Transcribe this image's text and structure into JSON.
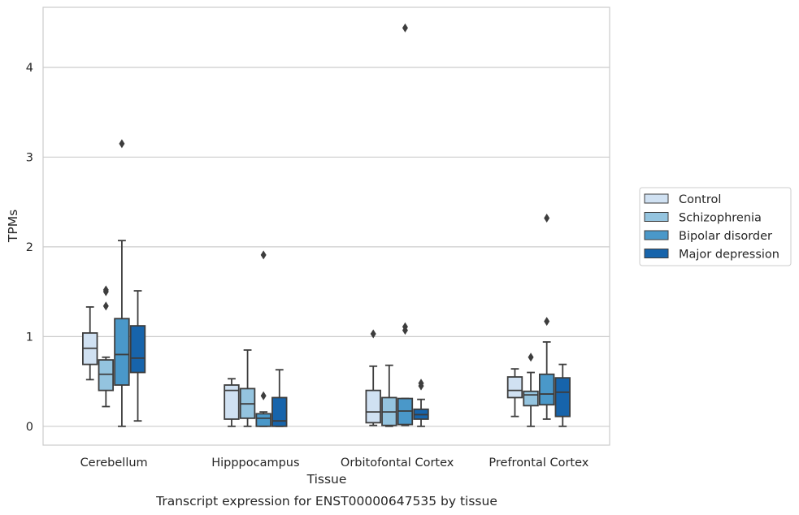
{
  "chart_data": {
    "type": "box",
    "title": "",
    "xlabel": "Tissue",
    "ylabel": "TPMs",
    "caption": "Transcript expression for ENST00000647535 by tissue",
    "ylim": [
      -0.21,
      4.67
    ],
    "yticks": [
      0,
      1,
      2,
      3,
      4
    ],
    "grid": true,
    "legend_position": "right",
    "categories": [
      "Cerebellum",
      "Hipppocampus",
      "Orbitofontal Cortex",
      "Prefrontal Cortex"
    ],
    "series": [
      {
        "name": "Control",
        "color": "#d0e1f2",
        "boxes": [
          {
            "whislo": 0.52,
            "q1": 0.69,
            "med": 0.87,
            "q3": 1.04,
            "whishi": 1.33,
            "fliers": []
          },
          {
            "whislo": 0.0,
            "q1": 0.08,
            "med": 0.4,
            "q3": 0.46,
            "whishi": 0.53,
            "fliers": []
          },
          {
            "whislo": 0.01,
            "q1": 0.04,
            "med": 0.16,
            "q3": 0.4,
            "whishi": 0.67,
            "fliers": [
              1.03
            ]
          },
          {
            "whislo": 0.11,
            "q1": 0.32,
            "med": 0.4,
            "q3": 0.55,
            "whishi": 0.64,
            "fliers": []
          }
        ]
      },
      {
        "name": "Schizophrenia",
        "color": "#94c4df",
        "boxes": [
          {
            "whislo": 0.22,
            "q1": 0.4,
            "med": 0.58,
            "q3": 0.74,
            "whishi": 0.77,
            "fliers": [
              1.34,
              1.5,
              1.52
            ]
          },
          {
            "whislo": 0.0,
            "q1": 0.09,
            "med": 0.25,
            "q3": 0.42,
            "whishi": 0.85,
            "fliers": []
          },
          {
            "whislo": 0.0,
            "q1": 0.01,
            "med": 0.16,
            "q3": 0.32,
            "whishi": 0.68,
            "fliers": []
          },
          {
            "whislo": 0.0,
            "q1": 0.23,
            "med": 0.35,
            "q3": 0.39,
            "whishi": 0.6,
            "fliers": [
              0.77
            ]
          }
        ]
      },
      {
        "name": "Bipolar disorder",
        "color": "#4a98c9",
        "boxes": [
          {
            "whislo": 0.0,
            "q1": 0.46,
            "med": 0.8,
            "q3": 1.2,
            "whishi": 2.07,
            "fliers": [
              3.15
            ]
          },
          {
            "whislo": 0.0,
            "q1": 0.0,
            "med": 0.09,
            "q3": 0.14,
            "whishi": 0.16,
            "fliers": [
              0.34,
              1.91
            ]
          },
          {
            "whislo": 0.01,
            "q1": 0.02,
            "med": 0.17,
            "q3": 0.31,
            "whishi": 0.31,
            "fliers": [
              1.07,
              1.11,
              4.44
            ]
          },
          {
            "whislo": 0.08,
            "q1": 0.24,
            "med": 0.36,
            "q3": 0.58,
            "whishi": 0.94,
            "fliers": [
              1.17,
              2.32
            ]
          }
        ]
      },
      {
        "name": "Major depression",
        "color": "#1764ab",
        "boxes": [
          {
            "whislo": 0.06,
            "q1": 0.6,
            "med": 0.76,
            "q3": 1.12,
            "whishi": 1.51,
            "fliers": []
          },
          {
            "whislo": 0.0,
            "q1": 0.0,
            "med": 0.06,
            "q3": 0.32,
            "whishi": 0.63,
            "fliers": []
          },
          {
            "whislo": 0.0,
            "q1": 0.08,
            "med": 0.13,
            "q3": 0.19,
            "whishi": 0.3,
            "fliers": [
              0.45,
              0.48
            ]
          },
          {
            "whislo": 0.0,
            "q1": 0.11,
            "med": 0.38,
            "q3": 0.54,
            "whishi": 0.69,
            "fliers": []
          }
        ]
      }
    ]
  }
}
